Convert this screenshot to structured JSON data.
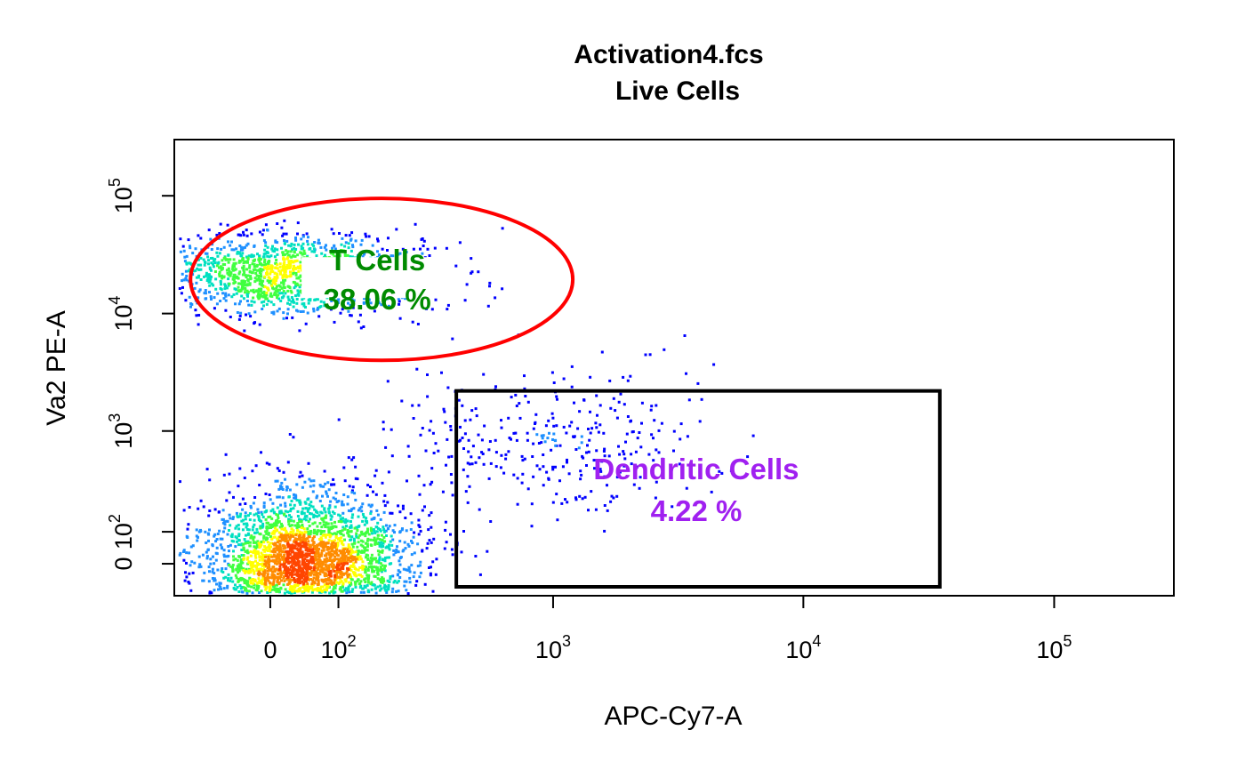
{
  "chart_data": {
    "type": "scatter",
    "title": "Activation4.fcs",
    "subtitle": "Live Cells",
    "xlabel": "APC-Cy7-A",
    "ylabel": "Va2 PE-A",
    "scale": "biexponential",
    "xlim": [
      -150,
      300000
    ],
    "ylim": [
      -100,
      300000
    ],
    "x_ticks": [
      {
        "value": 0,
        "base": "0",
        "exp": ""
      },
      {
        "value": 100,
        "base": "10",
        "exp": "2"
      },
      {
        "value": 1000,
        "base": "10",
        "exp": "3"
      },
      {
        "value": 10000,
        "base": "10",
        "exp": "4"
      },
      {
        "value": 100000,
        "base": "10",
        "exp": "5"
      }
    ],
    "y_ticks": [
      {
        "value": 0,
        "base": "0",
        "exp": ""
      },
      {
        "value": 100,
        "base": "10",
        "exp": "2"
      },
      {
        "value": 1000,
        "base": "10",
        "exp": "3"
      },
      {
        "value": 10000,
        "base": "10",
        "exp": "4"
      },
      {
        "value": 100000,
        "base": "10",
        "exp": "5"
      }
    ],
    "colormap": [
      "#0000ff",
      "#1e90ff",
      "#00e0c0",
      "#40ff40",
      "#ffff00",
      "#ff8c00",
      "#ff4500"
    ],
    "populations": [
      {
        "center_x": 50,
        "center_y": 0,
        "count": 3200
      },
      {
        "center_x": 20,
        "center_y": 22000,
        "count": 1500
      },
      {
        "center_x": 1000,
        "center_y": 800,
        "count": 350
      }
    ],
    "gates": [
      {
        "name": "T Cells",
        "percent": "38.06 %",
        "shape": "ellipse",
        "color": "#ff0000",
        "label_color": "#008b00",
        "center": [
          40,
          20000
        ],
        "x_range": [
          -120,
          1200
        ],
        "y_range": [
          4000,
          95000
        ]
      },
      {
        "name": "Dendritic Cells",
        "percent": "4.22 %",
        "shape": "rectangle",
        "color": "#000000",
        "label_color": "#a020f0",
        "x_range": [
          400,
          35000
        ],
        "y_range": [
          -70,
          2200
        ]
      }
    ]
  }
}
